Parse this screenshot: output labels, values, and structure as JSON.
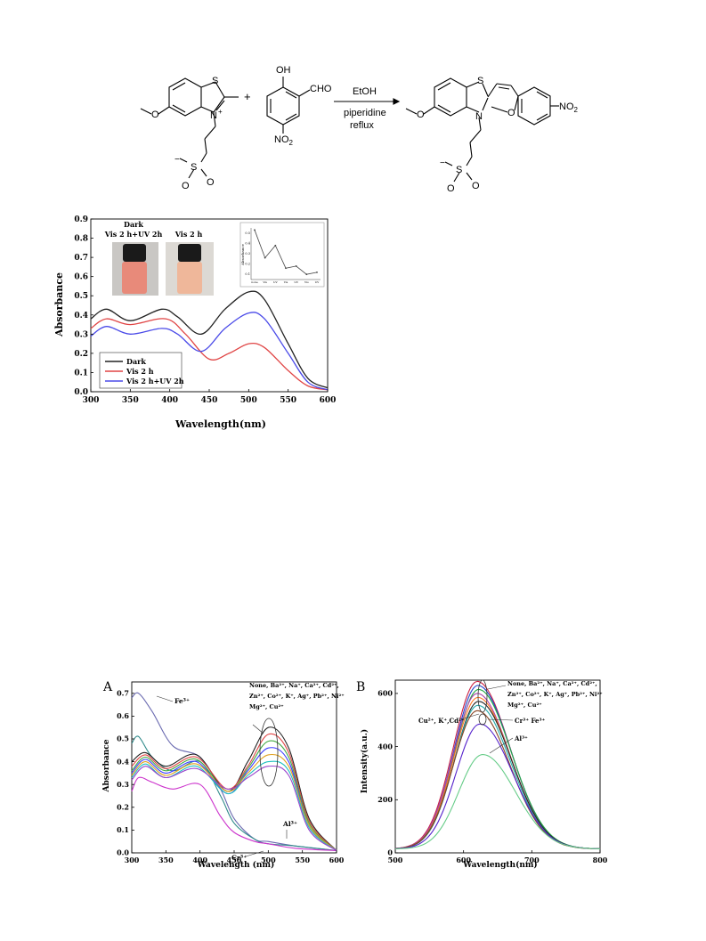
{
  "scheme": {
    "reagent_benzothiazolium": {
      "s_label": "S",
      "n_label": "N",
      "plus": "+",
      "o_label": "O",
      "so3": "S",
      "o1": "O",
      "o2": "O",
      "minus": "−"
    },
    "plus_sign": "+",
    "reagent_aldehyde": {
      "oh_label": "OH",
      "cho_label": "CHO",
      "no2_label": "NO",
      "no2_sub": "2"
    },
    "conditions": {
      "above": "EtOH",
      "below1": "piperidine",
      "below2": "reflux"
    },
    "product": {
      "s_label": "S",
      "n_label": "N",
      "o_ring": "O",
      "no2_label": "NO",
      "no2_sub": "2",
      "o_label": "O",
      "so3": "S",
      "o1": "O",
      "o2": "O",
      "minus": "−"
    }
  },
  "figure_top": {
    "inset_photo": {
      "label_dark": "Dark",
      "label_vis_uv": "Vis 2 h+UV 2h",
      "label_vis": "Vis 2 h",
      "cap_color": "#1a1a1a",
      "sol_dark": "#e88a7a",
      "sol_vis": "#efb79a"
    },
    "inset_plot": {
      "ylabel": "Absorbance",
      "values": [
        0.53,
        0.26,
        0.38,
        0.16,
        0.18,
        0.1,
        0.12
      ],
      "yticks": [
        "0.5",
        "0.4",
        "0.3",
        "0.2",
        "0.1"
      ],
      "xticks": [
        "none",
        "Vis",
        "UV",
        "Vis",
        "UV",
        "Vis",
        "UV"
      ]
    }
  },
  "figure_a": {
    "panel_label": "A"
  },
  "figure_b": {
    "panel_label": "B"
  },
  "chart_data": [
    {
      "type": "line",
      "xlabel": "Wavelength(nm)",
      "ylabel": "Absorbance",
      "xlim": [
        300,
        600
      ],
      "ylim": [
        0,
        0.9
      ],
      "xticks": [
        300,
        350,
        400,
        450,
        500,
        550,
        600
      ],
      "yticks": [
        0.0,
        0.1,
        0.2,
        0.3,
        0.4,
        0.5,
        0.6,
        0.7,
        0.8,
        0.9
      ],
      "legend_position": "lower-left",
      "series": [
        {
          "name": "Dark",
          "color": "#222222",
          "x": [
            300,
            320,
            350,
            390,
            410,
            440,
            470,
            500,
            520,
            550,
            575,
            600
          ],
          "y": [
            0.38,
            0.43,
            0.37,
            0.43,
            0.39,
            0.3,
            0.43,
            0.52,
            0.48,
            0.25,
            0.07,
            0.02
          ]
        },
        {
          "name": "Vis 2 h",
          "color": "#e04545",
          "x": [
            300,
            320,
            350,
            395,
            420,
            450,
            475,
            500,
            520,
            550,
            575,
            600
          ],
          "y": [
            0.33,
            0.38,
            0.35,
            0.38,
            0.3,
            0.17,
            0.2,
            0.25,
            0.23,
            0.11,
            0.03,
            0.01
          ]
        },
        {
          "name": "Vis 2 h+UV 2h",
          "color": "#4a4ae8",
          "x": [
            300,
            320,
            350,
            390,
            410,
            440,
            470,
            500,
            520,
            550,
            575,
            600
          ],
          "y": [
            0.29,
            0.34,
            0.3,
            0.33,
            0.3,
            0.21,
            0.33,
            0.41,
            0.38,
            0.2,
            0.05,
            0.01
          ]
        }
      ]
    },
    {
      "type": "line",
      "panel": "A",
      "xlabel": "Wavelength (nm)",
      "ylabel": "Absorbance",
      "xlim": [
        300,
        600
      ],
      "ylim": [
        0,
        0.75
      ],
      "xticks": [
        300,
        350,
        400,
        450,
        500,
        550,
        600
      ],
      "yticks": [
        0.0,
        0.1,
        0.2,
        0.3,
        0.4,
        0.5,
        0.6,
        0.7
      ],
      "annotations": [
        {
          "text": "None, Ba²⁺, Na⁺, Ca²⁺, Cd²⁺,"
        },
        {
          "text": "Zn²⁺, Co²⁺, K⁺, Ag⁺, Pb²⁺, Ni²⁺"
        },
        {
          "text": "Mg²⁺, Cu²⁺"
        },
        {
          "text": "Fe³⁺"
        },
        {
          "text": "Al³⁺"
        },
        {
          "text": "Cr³⁺"
        }
      ],
      "series": [
        {
          "name": "Fe3+",
          "color": "#6a6ab0",
          "x": [
            300,
            310,
            330,
            360,
            400,
            430,
            450,
            480,
            500,
            540,
            600
          ],
          "y": [
            0.68,
            0.7,
            0.62,
            0.47,
            0.42,
            0.28,
            0.15,
            0.06,
            0.05,
            0.03,
            0.01
          ]
        },
        {
          "name": "Al3+",
          "color": "#2f8a8a",
          "x": [
            300,
            310,
            330,
            360,
            400,
            430,
            450,
            480,
            500,
            540,
            600
          ],
          "y": [
            0.48,
            0.51,
            0.42,
            0.36,
            0.4,
            0.25,
            0.13,
            0.06,
            0.04,
            0.03,
            0.01
          ]
        },
        {
          "name": "Cr3+",
          "color": "#cc33cc",
          "x": [
            300,
            310,
            330,
            360,
            400,
            430,
            450,
            480,
            500,
            540,
            600
          ],
          "y": [
            0.27,
            0.33,
            0.31,
            0.28,
            0.3,
            0.16,
            0.09,
            0.05,
            0.04,
            0.02,
            0.01
          ]
        },
        {
          "color": "#222222",
          "x": [
            300,
            320,
            350,
            395,
            440,
            470,
            500,
            530,
            560,
            600
          ],
          "y": [
            0.4,
            0.44,
            0.38,
            0.43,
            0.27,
            0.4,
            0.55,
            0.46,
            0.15,
            0.01
          ]
        },
        {
          "color": "#e04545",
          "x": [
            300,
            320,
            350,
            395,
            440,
            470,
            500,
            530,
            560,
            600
          ],
          "y": [
            0.38,
            0.43,
            0.37,
            0.42,
            0.28,
            0.38,
            0.52,
            0.44,
            0.14,
            0.01
          ]
        },
        {
          "color": "#44aa44",
          "x": [
            300,
            320,
            350,
            395,
            440,
            470,
            500,
            530,
            560,
            600
          ],
          "y": [
            0.36,
            0.42,
            0.36,
            0.41,
            0.27,
            0.37,
            0.49,
            0.42,
            0.13,
            0.01
          ]
        },
        {
          "color": "#3a3aff",
          "x": [
            300,
            320,
            350,
            395,
            440,
            470,
            500,
            530,
            560,
            600
          ],
          "y": [
            0.35,
            0.41,
            0.35,
            0.4,
            0.26,
            0.36,
            0.46,
            0.4,
            0.12,
            0.01
          ]
        },
        {
          "color": "#e0a020",
          "x": [
            300,
            320,
            350,
            395,
            440,
            470,
            500,
            530,
            560,
            600
          ],
          "y": [
            0.34,
            0.4,
            0.34,
            0.39,
            0.27,
            0.35,
            0.43,
            0.38,
            0.12,
            0.01
          ]
        },
        {
          "color": "#20c0c0",
          "x": [
            300,
            320,
            350,
            395,
            440,
            470,
            500,
            530,
            560,
            600
          ],
          "y": [
            0.33,
            0.39,
            0.33,
            0.38,
            0.26,
            0.34,
            0.4,
            0.36,
            0.11,
            0.01
          ]
        },
        {
          "color": "#9944cc",
          "x": [
            300,
            320,
            350,
            395,
            440,
            470,
            500,
            530,
            560,
            600
          ],
          "y": [
            0.32,
            0.38,
            0.33,
            0.37,
            0.28,
            0.33,
            0.38,
            0.34,
            0.1,
            0.01
          ]
        }
      ]
    },
    {
      "type": "line",
      "panel": "B",
      "xlabel": "Wavelength(nm)",
      "ylabel": "Intensity(a.u.)",
      "xlim": [
        500,
        800
      ],
      "ylim": [
        0,
        650
      ],
      "xticks": [
        500,
        600,
        700,
        800
      ],
      "yticks": [
        0,
        200,
        400,
        600
      ],
      "annotations": [
        {
          "text": "None, Ba²⁺, Na⁺, Ca²⁺, Cd²⁺,"
        },
        {
          "text": "Zn²⁺, Co²⁺, K⁺, Ag⁺, Pb²⁺, Ni²⁺"
        },
        {
          "text": "Mg²⁺, Cu²⁺"
        },
        {
          "text": "Cu²⁺, K⁺,Cd²⁺"
        },
        {
          "text": "Cr³⁺ Fe³⁺"
        },
        {
          "text": "Al³⁺"
        }
      ],
      "series": [
        {
          "color": "#cc2244",
          "peak": 620,
          "height": 630
        },
        {
          "color": "#2244cc",
          "peak": 621,
          "height": 615
        },
        {
          "color": "#22aa44",
          "peak": 622,
          "height": 600
        },
        {
          "color": "#aa44aa",
          "peak": 620,
          "height": 585
        },
        {
          "color": "#ff7722",
          "peak": 621,
          "height": 570
        },
        {
          "color": "#222222",
          "peak": 622,
          "height": 555
        },
        {
          "color": "#22aaaa",
          "peak": 621,
          "height": 540
        },
        {
          "color": "#884422",
          "peak": 620,
          "height": 520
        },
        {
          "color": "#5522cc",
          "peak": 624,
          "height": 470
        },
        {
          "color": "#66cc88",
          "peak": 628,
          "height": 355
        }
      ]
    }
  ]
}
